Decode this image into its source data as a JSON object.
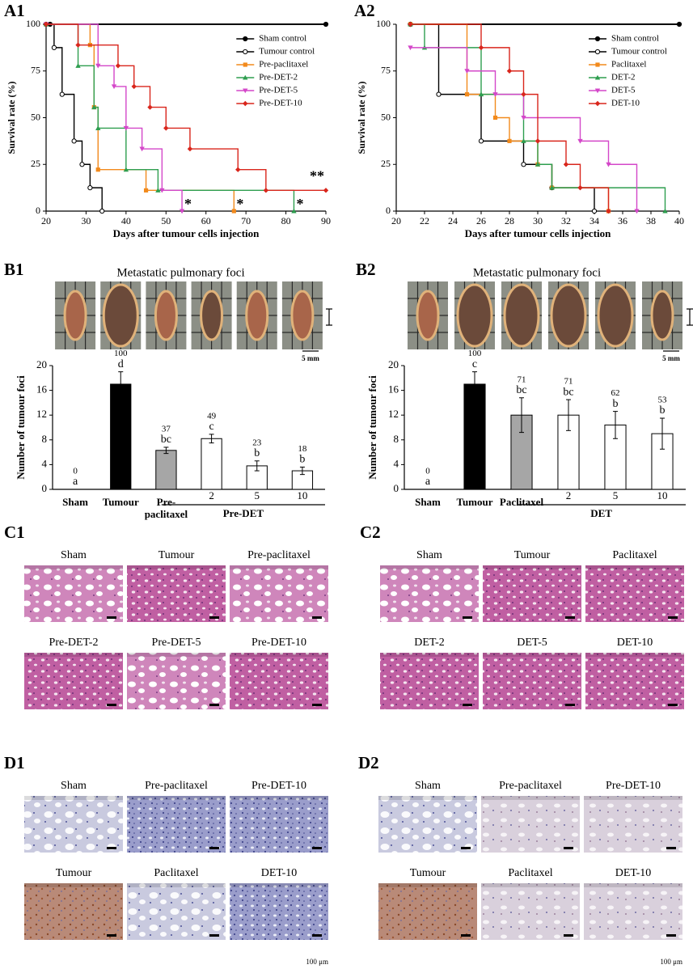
{
  "chart_data": [
    {
      "type": "line",
      "step": true,
      "panel": "A1",
      "xlabel": "Days after tumour cells injection",
      "ylabel": "Survival rate (%)",
      "xlim": [
        20,
        90
      ],
      "xticks": [
        20,
        30,
        40,
        50,
        60,
        70,
        80,
        90
      ],
      "ylim": [
        0,
        100
      ],
      "yticks": [
        0,
        25,
        50,
        75,
        100
      ],
      "legend": "upper right",
      "series": [
        {
          "name": "Sham control",
          "color": "#000000",
          "marker": "circle",
          "x": [
            21,
            90
          ],
          "values": [
            100,
            100
          ]
        },
        {
          "name": "Tumour control",
          "color": "#000000",
          "marker": "open-circle",
          "x": [
            20,
            22,
            24,
            27,
            29,
            31,
            34
          ],
          "values": [
            100,
            87.5,
            62.5,
            37.5,
            25,
            12.5,
            0
          ]
        },
        {
          "name": "Pre-paclitaxel",
          "color": "#f28a1c",
          "marker": "square",
          "x": [
            20,
            31,
            32,
            33,
            45,
            67
          ],
          "values": [
            100,
            88.9,
            55.6,
            22.2,
            11.1,
            0
          ],
          "significance": "*"
        },
        {
          "name": "Pre-DET-2",
          "color": "#2e9e4f",
          "marker": "triangle",
          "x": [
            20,
            28,
            32,
            33,
            40,
            48,
            82
          ],
          "values": [
            100,
            77.8,
            55.6,
            44.4,
            22.2,
            11.1,
            0
          ],
          "significance": "*"
        },
        {
          "name": "Pre-DET-5",
          "color": "#d447c9",
          "marker": "triangle-down",
          "x": [
            20,
            33,
            37,
            40,
            44,
            49,
            54
          ],
          "values": [
            100,
            77.8,
            66.7,
            44.4,
            33.3,
            11.1,
            0
          ],
          "significance": "*"
        },
        {
          "name": "Pre-DET-10",
          "color": "#d9261c",
          "marker": "diamond",
          "x": [
            20,
            28,
            38,
            42,
            46,
            50,
            56,
            68,
            75,
            90
          ],
          "values": [
            100,
            88.9,
            77.8,
            66.7,
            55.6,
            44.4,
            33.3,
            22.2,
            11.1,
            11.1
          ],
          "significance": "**"
        }
      ]
    },
    {
      "type": "line",
      "step": true,
      "panel": "A2",
      "xlabel": "Days after tumour cells injection",
      "ylabel": "Survival rate (%)",
      "xlim": [
        20,
        40
      ],
      "xticks": [
        20,
        22,
        24,
        26,
        28,
        30,
        32,
        34,
        36,
        38,
        40
      ],
      "ylim": [
        0,
        100
      ],
      "yticks": [
        0,
        25,
        50,
        75,
        100
      ],
      "legend": "upper right",
      "series": [
        {
          "name": "Sham control",
          "color": "#000000",
          "marker": "circle",
          "x": [
            21,
            40
          ],
          "values": [
            100,
            100
          ]
        },
        {
          "name": "Tumour control",
          "color": "#000000",
          "marker": "open-circle",
          "x": [
            21,
            23,
            26,
            29,
            31,
            34
          ],
          "values": [
            100,
            62.5,
            37.5,
            25,
            12.5,
            0
          ]
        },
        {
          "name": "Paclitaxel",
          "color": "#f28a1c",
          "marker": "square",
          "x": [
            21,
            25,
            27,
            28,
            30,
            31,
            35
          ],
          "values": [
            100,
            62.5,
            50,
            37.5,
            25,
            12.5,
            0
          ]
        },
        {
          "name": "DET-2",
          "color": "#2e9e4f",
          "marker": "triangle",
          "x": [
            21,
            22,
            26,
            29,
            30,
            31,
            39
          ],
          "values": [
            100,
            87.5,
            62.5,
            37.5,
            25,
            12.5,
            0
          ]
        },
        {
          "name": "DET-5",
          "color": "#d447c9",
          "marker": "triangle-down",
          "x": [
            21,
            25,
            27,
            29,
            33,
            35,
            37
          ],
          "values": [
            87.5,
            75,
            62.5,
            50,
            37.5,
            25,
            0
          ]
        },
        {
          "name": "DET-10",
          "color": "#d9261c",
          "marker": "diamond",
          "x": [
            21,
            26,
            28,
            29,
            30,
            32,
            33,
            35
          ],
          "values": [
            100,
            87.5,
            75,
            62.5,
            37.5,
            25,
            12.5,
            0
          ]
        }
      ]
    },
    {
      "type": "bar",
      "panel": "B1",
      "title": "Metastatic pulmonary foci",
      "ylabel": "Number of tumour foci",
      "categories": [
        "Sham",
        "Tumour",
        "Pre-\npaclitaxel",
        "2",
        "5",
        "10"
      ],
      "values": [
        0,
        17,
        6.3,
        8.2,
        3.8,
        3.0
      ],
      "errors": [
        0,
        2.0,
        0.5,
        0.7,
        0.8,
        0.6
      ],
      "colors": [
        "#ffffff",
        "#000000",
        "#a6a6a6",
        "#ffffff",
        "#ffffff",
        "#ffffff"
      ],
      "percent": [
        0,
        100,
        37,
        49,
        23,
        18
      ],
      "letters": [
        "a",
        "d",
        "bc",
        "c",
        "b",
        "b"
      ],
      "groups": [
        {
          "label": "Pre-DET",
          "categories": [
            "2",
            "5",
            "10"
          ]
        }
      ],
      "ylim": [
        0,
        20
      ],
      "yticks": [
        0,
        4,
        8,
        12,
        16,
        20
      ],
      "scale_label": "5 mm"
    },
    {
      "type": "bar",
      "panel": "B2",
      "title": "Metastatic pulmonary foci",
      "ylabel": "Number of tumour foci",
      "categories": [
        "Sham",
        "Tumour",
        "Paclitaxel",
        "2",
        "5",
        "10"
      ],
      "values": [
        0,
        17,
        12,
        12,
        10.4,
        9
      ],
      "errors": [
        0,
        2.0,
        2.8,
        2.5,
        2.2,
        2.5
      ],
      "colors": [
        "#ffffff",
        "#000000",
        "#a6a6a6",
        "#ffffff",
        "#ffffff",
        "#ffffff"
      ],
      "percent": [
        0,
        100,
        71,
        71,
        62,
        53
      ],
      "letters": [
        "a",
        "c",
        "bc",
        "bc",
        "b",
        "b"
      ],
      "groups": [
        {
          "label": "DET",
          "categories": [
            "2",
            "5",
            "10"
          ]
        }
      ],
      "ylim": [
        0,
        20
      ],
      "yticks": [
        0,
        4,
        8,
        12,
        16,
        20
      ],
      "scale_label": "5 mm"
    }
  ],
  "image_panels": [
    {
      "label": "C1",
      "images": [
        {
          "title": "Sham",
          "stain": "he-open"
        },
        {
          "title": "Tumour",
          "stain": "he-dense"
        },
        {
          "title": "Pre-paclitaxel",
          "stain": "he-open"
        },
        {
          "title": "Pre-DET-2",
          "stain": "he-dense"
        },
        {
          "title": "Pre-DET-5",
          "stain": "he-open"
        },
        {
          "title": "Pre-DET-10",
          "stain": "he-dense"
        }
      ]
    },
    {
      "label": "C2",
      "images": [
        {
          "title": "Sham",
          "stain": "he-open"
        },
        {
          "title": "Tumour",
          "stain": "he-dense"
        },
        {
          "title": "Paclitaxel",
          "stain": "he-dense"
        },
        {
          "title": "DET-2",
          "stain": "he-dense"
        },
        {
          "title": "DET-5",
          "stain": "he-dense"
        },
        {
          "title": "DET-10",
          "stain": "he-dense"
        }
      ]
    },
    {
      "label": "D1",
      "scale_label": "100 μm",
      "images": [
        {
          "title": "Sham",
          "stain": "ihc-open"
        },
        {
          "title": "Pre-paclitaxel",
          "stain": "ihc-dense"
        },
        {
          "title": "Pre-DET-10",
          "stain": "ihc-dense"
        },
        {
          "title": "Tumour",
          "stain": "ihc-brown"
        },
        {
          "title": "Paclitaxel",
          "stain": "ihc-open"
        },
        {
          "title": "DET-10",
          "stain": "ihc-dense"
        }
      ]
    },
    {
      "label": "D2",
      "scale_label": "100 μm",
      "images": [
        {
          "title": "Sham",
          "stain": "ihc-open"
        },
        {
          "title": "Pre-paclitaxel",
          "stain": "ihc-pale"
        },
        {
          "title": "Pre-DET-10",
          "stain": "ihc-pale"
        },
        {
          "title": "Tumour",
          "stain": "ihc-brown"
        },
        {
          "title": "Paclitaxel",
          "stain": "ihc-pale"
        },
        {
          "title": "DET-10",
          "stain": "ihc-pale"
        }
      ]
    }
  ]
}
